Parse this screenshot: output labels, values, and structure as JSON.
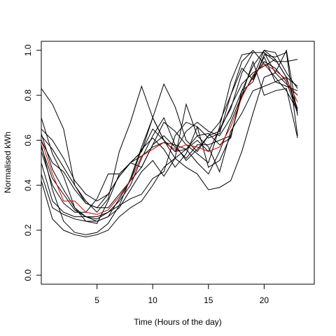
{
  "chart_data": {
    "type": "line",
    "title": "",
    "xlabel": "Time (Hours of the day)",
    "ylabel": "Normalised kWh",
    "xlim": [
      0,
      24.5
    ],
    "ylim": [
      -0.04,
      1.04
    ],
    "x_ticks": [
      5,
      10,
      15,
      20
    ],
    "y_ticks": [
      0.0,
      0.2,
      0.4,
      0.6,
      0.8,
      1.0
    ],
    "x_tick_labels": [
      "5",
      "10",
      "15",
      "20"
    ],
    "y_tick_labels": [
      "0.0",
      "0.2",
      "0.4",
      "0.6",
      "0.8",
      "1.0"
    ],
    "grid": false,
    "legend": "none",
    "x": [
      0,
      1,
      2,
      3,
      4,
      5,
      6,
      7,
      8,
      9,
      10,
      11,
      12,
      13,
      14,
      15,
      16,
      17,
      18,
      19,
      20,
      21,
      22,
      23
    ],
    "series": [
      {
        "color": "#000000",
        "values": [
          0.83,
          0.76,
          0.65,
          0.4,
          0.33,
          0.28,
          0.34,
          0.55,
          0.68,
          0.84,
          0.7,
          0.6,
          0.55,
          0.56,
          0.6,
          0.55,
          0.65,
          0.74,
          0.9,
          0.99,
          0.99,
          0.95,
          0.95,
          0.96
        ]
      },
      {
        "color": "#000000",
        "values": [
          0.7,
          0.54,
          0.44,
          0.3,
          0.24,
          0.23,
          0.33,
          0.45,
          0.5,
          0.55,
          0.7,
          0.85,
          0.75,
          0.6,
          0.55,
          0.62,
          0.68,
          0.8,
          0.95,
          1.0,
          0.94,
          0.88,
          0.82,
          0.73
        ]
      },
      {
        "color": "#000000",
        "values": [
          0.65,
          0.6,
          0.52,
          0.42,
          0.36,
          0.33,
          0.36,
          0.44,
          0.5,
          0.48,
          0.58,
          0.68,
          0.64,
          0.58,
          0.54,
          0.5,
          0.66,
          0.86,
          0.98,
          0.99,
          0.99,
          0.9,
          0.85,
          0.8
        ]
      },
      {
        "color": "#000000",
        "values": [
          0.62,
          0.56,
          0.48,
          0.4,
          0.32,
          0.3,
          0.36,
          0.44,
          0.5,
          0.55,
          0.65,
          0.6,
          0.55,
          0.64,
          0.68,
          0.64,
          0.62,
          0.7,
          0.82,
          0.93,
          1.0,
          0.96,
          0.88,
          0.84
        ]
      },
      {
        "color": "#000000",
        "values": [
          0.6,
          0.5,
          0.46,
          0.38,
          0.32,
          0.3,
          0.3,
          0.36,
          0.42,
          0.48,
          0.58,
          0.62,
          0.57,
          0.52,
          0.58,
          0.58,
          0.6,
          0.62,
          0.8,
          0.88,
          0.95,
          0.92,
          0.86,
          0.72
        ]
      },
      {
        "color": "#000000",
        "values": [
          0.57,
          0.43,
          0.36,
          0.29,
          0.26,
          0.25,
          0.28,
          0.33,
          0.4,
          0.52,
          0.62,
          0.7,
          0.58,
          0.51,
          0.56,
          0.62,
          0.64,
          0.75,
          0.85,
          0.9,
          0.93,
          0.96,
          0.88,
          0.74
        ]
      },
      {
        "color": "#000000",
        "values": [
          0.55,
          0.4,
          0.32,
          0.28,
          0.28,
          0.34,
          0.45,
          0.45,
          0.5,
          0.53,
          0.57,
          0.59,
          0.58,
          0.56,
          0.5,
          0.45,
          0.55,
          0.68,
          0.8,
          0.95,
          0.8,
          0.82,
          0.83,
          0.61
        ]
      },
      {
        "color": "#000000",
        "values": [
          0.5,
          0.33,
          0.28,
          0.26,
          0.26,
          0.26,
          0.28,
          0.31,
          0.34,
          0.36,
          0.43,
          0.46,
          0.62,
          0.68,
          0.66,
          0.48,
          0.51,
          0.62,
          0.8,
          0.88,
          1.0,
          0.99,
          0.9,
          0.83
        ]
      },
      {
        "color": "#000000",
        "values": [
          0.45,
          0.3,
          0.27,
          0.25,
          0.24,
          0.24,
          0.26,
          0.3,
          0.38,
          0.46,
          0.51,
          0.44,
          0.52,
          0.56,
          0.62,
          0.63,
          0.58,
          0.61,
          0.82,
          0.86,
          0.98,
          0.97,
          0.99,
          0.62
        ]
      },
      {
        "color": "#000000",
        "values": [
          0.42,
          0.25,
          0.2,
          0.18,
          0.17,
          0.18,
          0.2,
          0.26,
          0.3,
          0.33,
          0.4,
          0.48,
          0.52,
          0.48,
          0.45,
          0.38,
          0.39,
          0.42,
          0.55,
          0.72,
          0.88,
          0.9,
          1.0,
          0.71
        ]
      },
      {
        "color": "#000000",
        "values": [
          0.58,
          0.38,
          0.24,
          0.19,
          0.18,
          0.19,
          0.23,
          0.31,
          0.43,
          0.57,
          0.7,
          0.6,
          0.52,
          0.76,
          0.62,
          0.57,
          0.46,
          0.64,
          0.72,
          0.82,
          0.84,
          0.86,
          0.88,
          0.73
        ]
      },
      {
        "color": "#000000",
        "values": [
          0.63,
          0.47,
          0.38,
          0.3,
          0.26,
          0.24,
          0.26,
          0.34,
          0.42,
          0.56,
          0.61,
          0.56,
          0.48,
          0.54,
          0.66,
          0.61,
          0.63,
          0.8,
          0.92,
          0.87,
          0.97,
          0.86,
          0.84,
          0.82
        ]
      },
      {
        "color": "#cc0000",
        "values": [
          0.6,
          0.45,
          0.33,
          0.33,
          0.28,
          0.27,
          0.29,
          0.35,
          0.42,
          0.53,
          0.56,
          0.59,
          0.56,
          0.58,
          0.57,
          0.55,
          0.57,
          0.66,
          0.79,
          0.89,
          0.94,
          0.91,
          0.87,
          0.77
        ]
      }
    ]
  }
}
